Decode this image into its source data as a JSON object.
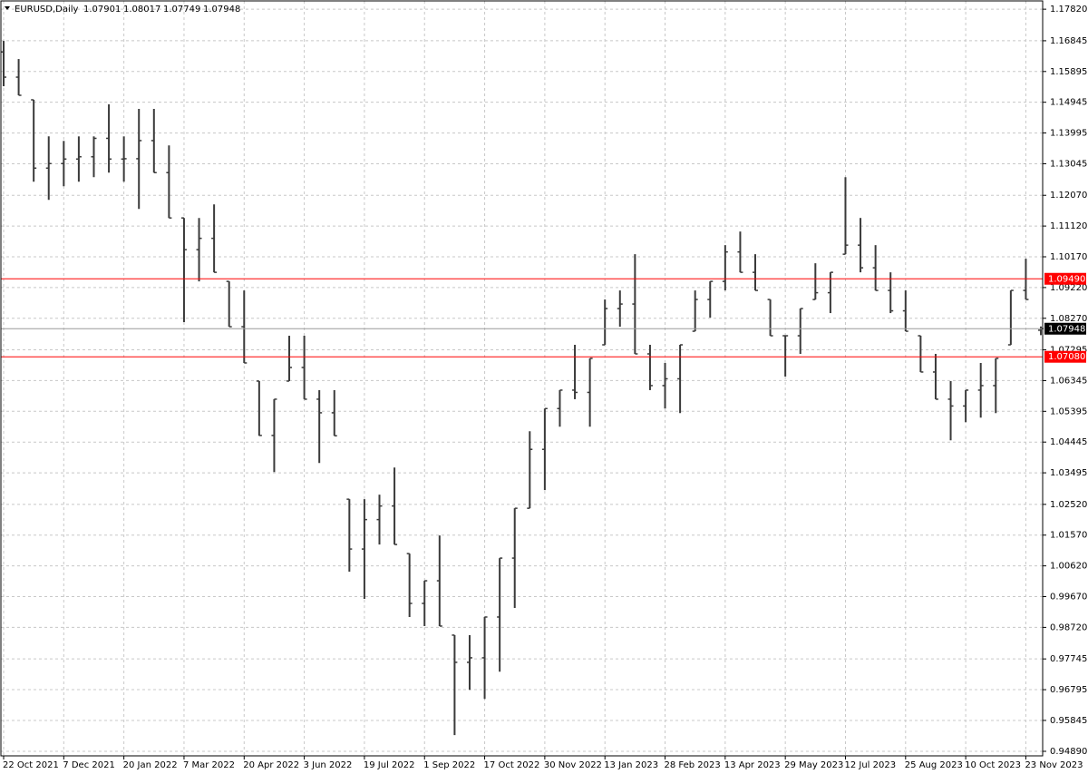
{
  "chart_data": {
    "type": "ohlc",
    "title": "EURUSD,Daily",
    "color": "#3a3a3a",
    "grid": true,
    "ylim": [
      0.9475,
      1.1802
    ],
    "yticks": [
      {
        "value": 1.1782,
        "label": "1.17820"
      },
      1.16845,
      1.15895,
      1.14945,
      1.13995,
      1.13045,
      {
        "value": 1.1207,
        "label": "1.12070"
      },
      {
        "value": 1.1112,
        "label": "1.11120"
      },
      {
        "value": 1.1017,
        "label": "1.10170"
      },
      {
        "value": 1.0922,
        "label": "1.09220"
      },
      {
        "value": 1.0827,
        "label": "1.08270"
      },
      1.07295,
      1.06345,
      1.05395,
      1.04445,
      1.03495,
      {
        "value": 1.0252,
        "label": "1.02520"
      },
      {
        "value": 1.0157,
        "label": "1.01570"
      },
      {
        "value": 1.0062,
        "label": "1.00620"
      },
      {
        "value": 0.9967,
        "label": "0.99670"
      },
      {
        "value": 0.9872,
        "label": "0.98720"
      },
      0.97745,
      0.96795,
      0.95845,
      {
        "value": 0.9489,
        "label": "0.94890"
      }
    ],
    "hlines": [
      {
        "value": 1.0949,
        "label": "1.09490",
        "color": "#ff0000"
      },
      {
        "value": 1.0708,
        "label": "1.07080",
        "color": "#ff0000"
      }
    ],
    "categories": [
      "22 Oct 2021",
      null,
      null,
      null,
      "7 Dec 2021",
      null,
      null,
      null,
      "20 Jan 2022",
      null,
      null,
      null,
      "7 Mar 2022",
      null,
      null,
      null,
      "20 Apr 2022",
      null,
      null,
      null,
      "3 Jun 2022",
      null,
      null,
      null,
      "19 Jul 2022",
      null,
      null,
      null,
      "1 Sep 2022",
      null,
      null,
      null,
      "17 Oct 2022",
      null,
      null,
      null,
      "30 Nov 2022",
      null,
      null,
      null,
      "13 Jan 2023",
      null,
      null,
      null,
      "28 Feb 2023",
      null,
      null,
      null,
      "13 Apr 2023",
      null,
      null,
      null,
      "29 May 2023",
      null,
      null,
      null,
      "12 Jul 2023",
      null,
      null,
      null,
      "25 Aug 2023",
      null,
      null,
      null,
      "10 Oct 2023",
      null,
      null,
      null,
      "23 Nov 2023",
      null
    ],
    "open": [
      1.165,
      1.1572,
      1.1502,
      1.1291,
      1.1305,
      1.1319,
      1.1326,
      1.1383,
      1.1319,
      1.132,
      1.1376,
      1.1277,
      1.1137,
      1.1039,
      1.1074,
      1.0941,
      1.0801,
      1.0633,
      1.0465,
      1.0633,
      1.0675,
      1.0577,
      1.0535,
      1.0268,
      1.0114,
      1.0205,
      1.0247,
      1.01,
      0.9946,
      1.0016,
      0.9848,
      0.9764,
      0.9778,
      0.9904,
      1.0086,
      1.024,
      1.0422,
      1.0548,
      1.0605,
      1.0598,
      1.0745,
      1.0857,
      1.0871,
      1.0717,
      1.0619,
      1.064,
      1.0787,
      1.0885,
      1.0941,
      1.1032,
      1.0969,
      1.0885,
      1.0773,
      1.0773,
      1.0885,
      1.0906,
      1.1025,
      1.1053,
      1.0983,
      1.0913,
      1.085,
      1.0773,
      1.0661,
      1.0577,
      1.0556,
      1.0605,
      1.0619,
      1.0745,
      1.0913,
      1.07901
    ],
    "high": [
      1.1684,
      1.1628,
      1.1502,
      1.1389,
      1.1375,
      1.1389,
      1.1389,
      1.1488,
      1.1389,
      1.1474,
      1.1474,
      1.1361,
      1.1137,
      1.1137,
      1.1179,
      1.0941,
      1.0913,
      1.0633,
      1.0577,
      1.0773,
      1.0773,
      1.0605,
      1.0605,
      1.0268,
      1.0268,
      1.0282,
      1.0366,
      1.01,
      1.0016,
      1.0156,
      0.9848,
      0.9848,
      0.9904,
      1.0086,
      1.024,
      1.0478,
      1.0548,
      1.0605,
      1.0745,
      1.0703,
      1.0885,
      1.0913,
      1.1025,
      1.0745,
      1.0689,
      1.0745,
      1.0913,
      1.0941,
      1.1053,
      1.1095,
      1.1025,
      1.0885,
      1.0773,
      1.0857,
      1.0997,
      1.0969,
      1.1263,
      1.1137,
      1.1053,
      1.0969,
      1.0913,
      1.0773,
      1.0717,
      1.0633,
      1.0605,
      1.0689,
      1.0703,
      1.0913,
      1.1011,
      1.08017
    ],
    "low": [
      1.1544,
      1.1516,
      1.1249,
      1.1193,
      1.1235,
      1.1249,
      1.1263,
      1.1277,
      1.1249,
      1.1165,
      1.1277,
      1.1137,
      1.0815,
      1.0941,
      1.0969,
      1.0801,
      1.0689,
      1.0464,
      1.0352,
      1.0633,
      1.0577,
      1.038,
      1.0464,
      1.0044,
      0.996,
      1.0128,
      1.0128,
      0.9904,
      0.9876,
      0.9876,
      0.9539,
      0.9679,
      0.9651,
      0.9735,
      0.9932,
      1.024,
      1.0296,
      1.0492,
      1.0577,
      1.0492,
      1.0745,
      1.0801,
      1.0717,
      1.0605,
      1.0548,
      1.0534,
      1.0787,
      1.0829,
      1.0913,
      1.0969,
      1.0913,
      1.0773,
      1.0647,
      1.0717,
      1.0885,
      1.0843,
      1.1025,
      1.0969,
      1.0913,
      1.0843,
      1.0787,
      1.0661,
      1.0577,
      1.045,
      1.0506,
      1.052,
      1.0534,
      1.0745,
      1.0885,
      1.07749
    ],
    "close": [
      1.1572,
      1.1516,
      1.1291,
      1.1305,
      1.1319,
      1.1326,
      1.1383,
      1.1319,
      1.132,
      1.1376,
      1.1277,
      1.1137,
      1.1039,
      1.1074,
      1.0969,
      1.0801,
      1.0689,
      1.0465,
      1.0577,
      1.0675,
      1.0577,
      1.0535,
      1.0464,
      1.0114,
      1.0205,
      1.0247,
      1.0128,
      0.9946,
      1.0016,
      0.9876,
      0.9764,
      0.9778,
      0.9904,
      1.0086,
      1.024,
      1.0422,
      1.0548,
      1.0605,
      1.0598,
      1.0703,
      1.0857,
      1.0871,
      1.0717,
      1.0619,
      1.064,
      1.0745,
      1.0885,
      1.0941,
      1.1032,
      1.0969,
      1.0913,
      1.0773,
      1.0773,
      1.0857,
      1.0906,
      1.0969,
      1.1053,
      1.0983,
      1.0913,
      1.085,
      1.0787,
      1.0661,
      1.0577,
      1.0556,
      1.0605,
      1.0619,
      1.0703,
      1.0913,
      1.0885,
      1.07948
    ]
  }
}
